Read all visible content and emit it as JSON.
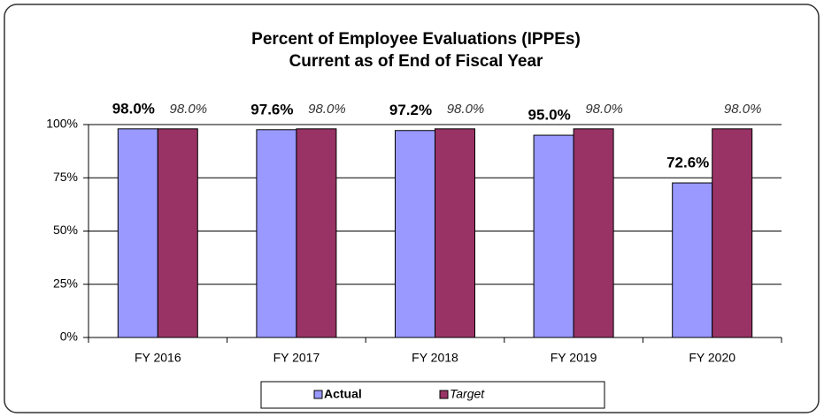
{
  "chart_data": {
    "type": "bar",
    "title": [
      "Percent of Employee Evaluations (IPPEs)",
      "Current as of End of Fiscal Year"
    ],
    "categories": [
      "FY 2016",
      "FY 2017",
      "FY 2018",
      "FY 2019",
      "FY 2020"
    ],
    "series": [
      {
        "name": "Actual",
        "color": "#9999ff",
        "values": [
          98.0,
          97.6,
          97.2,
          95.0,
          72.6
        ],
        "value_labels": [
          "98.0%",
          "97.6%",
          "97.2%",
          "95.0%",
          "72.6%"
        ]
      },
      {
        "name": "Target",
        "color": "#993366",
        "values": [
          98.0,
          98.0,
          98.0,
          98.0,
          98.0
        ],
        "value_labels": [
          "98.0%",
          "98.0%",
          "98.0%",
          "98.0%",
          "98.0%"
        ]
      }
    ],
    "ylim": [
      0,
      100
    ],
    "yticks": [
      {
        "value": 0,
        "label": "0%"
      },
      {
        "value": 25,
        "label": "25%"
      },
      {
        "value": 50,
        "label": "50%"
      },
      {
        "value": 75,
        "label": "75%"
      },
      {
        "value": 100,
        "label": "100%"
      }
    ],
    "grid": true,
    "legend": "bottom"
  }
}
